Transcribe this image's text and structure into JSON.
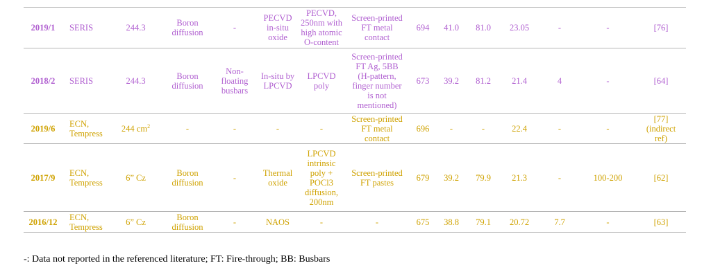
{
  "colors": {
    "purple": "#b05fd0",
    "gold": "#cfa200",
    "rule": "#b5b5b5"
  },
  "table": {
    "rows": [
      {
        "color": "purple",
        "cells": [
          "2019/1",
          "SERIS",
          "244.3",
          "Boron\ndiffusion",
          "-",
          "PECVD\nin-situ\noxide",
          "PECVD,\n250nm with\nhigh atomic\nO-content",
          "Screen-printed\nFT metal\ncontact",
          "694",
          "41.0",
          "81.0",
          "23.05",
          "-",
          "-",
          "[76]"
        ]
      },
      {
        "color": "purple",
        "cells": [
          "2018/2",
          "SERIS",
          "244.3",
          "Boron\ndiffusion",
          "Non-\nfloating\nbusbars",
          "In-situ by\nLPCVD",
          "LPCVD\npoly",
          "Screen-printed\nFT Ag, 5BB\n(H-pattern,\nfinger number\nis not\nmentioned)",
          "673",
          "39.2",
          "81.2",
          "21.4",
          "4",
          "-",
          "[64]"
        ]
      },
      {
        "color": "gold",
        "cells": [
          "2019/6",
          "ECN,\nTempress",
          "244 cm",
          "-",
          "-",
          "-",
          "-",
          "Screen-printed\nFT metal\ncontact",
          "696",
          "-",
          "-",
          "22.4",
          "-",
          "-",
          "[77]\n(indirect\nref)"
        ],
        "superscript": "2"
      },
      {
        "color": "gold",
        "cells": [
          "2017/9",
          "ECN,\nTempress",
          "6” Cz",
          "Boron\ndiffusion",
          "-",
          "Thermal\noxide",
          "LPCVD\nintrinsic\npoly +\nPOCl3\ndiffusion,\n200nm",
          "Screen-printed\nFT pastes",
          "679",
          "39.2",
          "79.9",
          "21.3",
          "-",
          "100-200",
          "[62]"
        ]
      },
      {
        "color": "gold",
        "cells": [
          "2016/12",
          "ECN,\nTempress",
          "6” Cz",
          "Boron\ndiffusion",
          "-",
          "NAOS",
          "-",
          "-",
          "675",
          "38.8",
          "79.1",
          "20.72",
          "7.7",
          "-",
          "[63]"
        ]
      }
    ]
  },
  "footnote": "-: Data not reported in the referenced literature; FT: Fire-through; BB: Busbars"
}
